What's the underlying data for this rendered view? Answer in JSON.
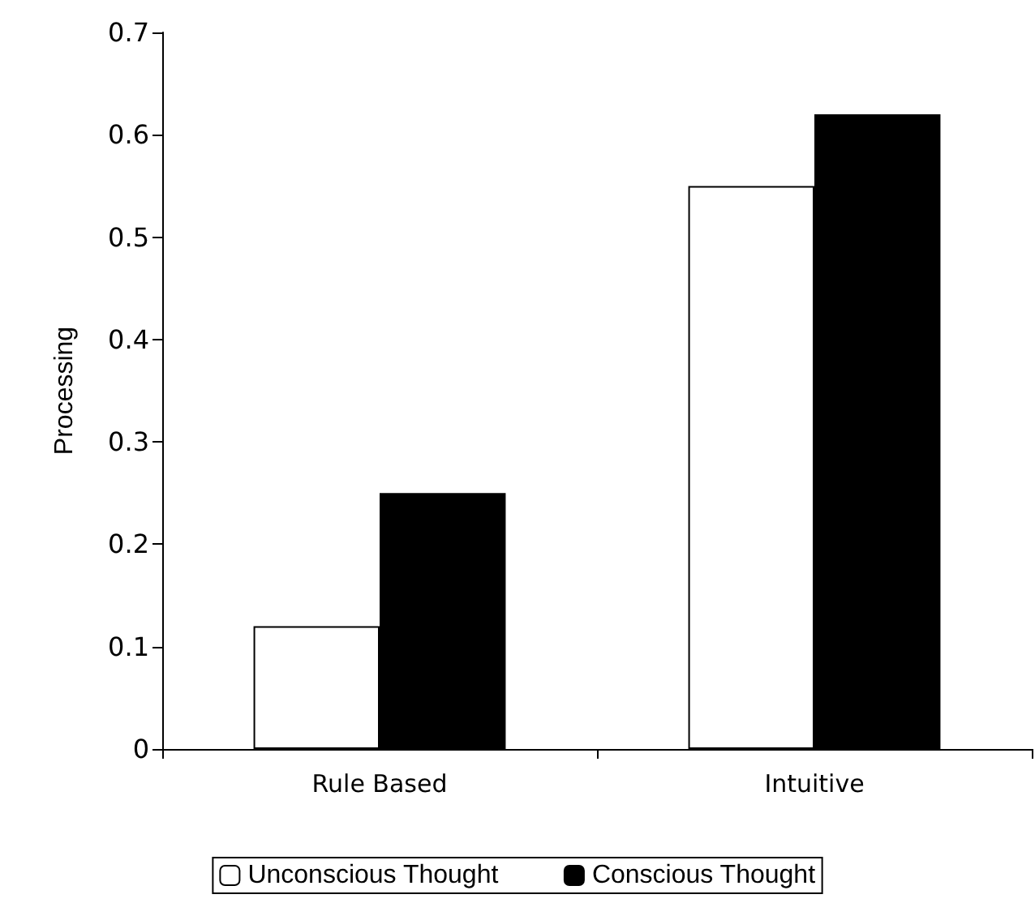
{
  "chart_data": {
    "type": "bar",
    "ylabel": "Processing",
    "categories": [
      "Rule Based",
      "Intuitive"
    ],
    "series": [
      {
        "name": "Unconscious Thought",
        "color": "#ffffff",
        "values": [
          0.12,
          0.55
        ]
      },
      {
        "name": "Conscious Thought",
        "color": "#000000",
        "values": [
          0.25,
          0.62
        ]
      }
    ],
    "ylim": [
      0,
      0.7
    ],
    "yticks": [
      0,
      0.1,
      0.2,
      0.3,
      0.4,
      0.5,
      0.6,
      0.7
    ],
    "grid": false,
    "legend": "bottom"
  }
}
